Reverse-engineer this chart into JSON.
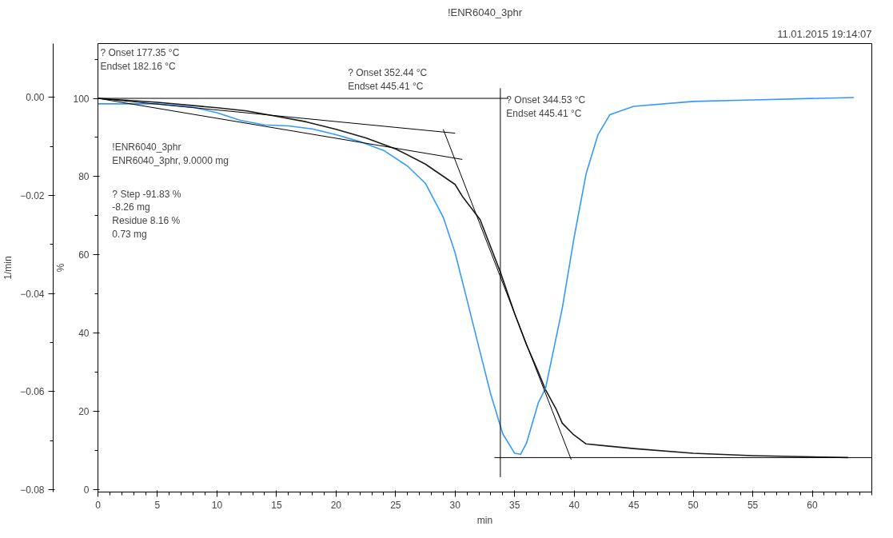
{
  "chart_data": {
    "type": "line",
    "title": "!ENR6040_3phr",
    "subtitle": "11.01.2015 19:14:07",
    "xlabel": "min",
    "ylabel": "%",
    "y2label": "1/min",
    "xlim": [
      0,
      65
    ],
    "xticks": [
      0,
      5,
      10,
      15,
      20,
      25,
      30,
      35,
      40,
      45,
      50,
      55,
      60
    ],
    "ylim": [
      -0.6,
      114
    ],
    "yticks": [
      0,
      20,
      40,
      60,
      80,
      100
    ],
    "y2lim": [
      -0.0805,
      0.011
    ],
    "y2ticks": [
      {
        "value": 0,
        "label": "0.00"
      },
      -0.02,
      -0.04,
      -0.06,
      -0.08
    ],
    "grid": false,
    "marker": "none",
    "line_style": "solid",
    "series": [
      {
        "color": "#1a1a1a",
        "x": [
          0,
          5,
          10,
          12.5,
          15,
          17.5,
          20,
          22.5,
          25,
          27.5,
          30,
          30.6,
          32.1,
          33.8,
          35,
          36,
          37,
          37.6,
          38.5,
          39,
          39.9,
          41,
          45,
          50,
          55,
          63
        ],
        "values": [
          100,
          99,
          97.6,
          96.8,
          95.4,
          94,
          92.1,
          89.9,
          87.1,
          83.2,
          78,
          75,
          69,
          55.6,
          45,
          37,
          30,
          25.5,
          20.5,
          17,
          14.2,
          11.7,
          10.5,
          9.3,
          8.7,
          8.2
        ]
      },
      {
        "color": "#3399ff",
        "axis": "y2",
        "x": [
          0,
          5,
          8,
          10,
          12,
          14,
          16,
          18,
          20,
          22,
          24,
          26,
          27.5,
          29,
          30,
          31,
          32,
          33,
          34,
          35,
          35.5,
          36,
          37,
          37.6,
          39,
          40,
          41,
          42,
          43,
          45,
          50,
          55,
          63.5
        ],
        "values": [
          -0.0013,
          -0.0013,
          -0.002,
          -0.0031,
          -0.0047,
          -0.0056,
          -0.0058,
          -0.0064,
          -0.0076,
          -0.009,
          -0.0108,
          -0.014,
          -0.0175,
          -0.0244,
          -0.0317,
          -0.0413,
          -0.051,
          -0.0606,
          -0.0686,
          -0.0726,
          -0.0728,
          -0.0705,
          -0.0622,
          -0.0593,
          -0.043,
          -0.0285,
          -0.0156,
          -0.0076,
          -0.0035,
          -0.0018,
          -0.0008,
          -0.0005,
          0
        ]
      },
      {
        "color": "#000000",
        "x": [
          0,
          34.5
        ],
        "values": [
          100,
          100
        ]
      },
      {
        "color": "#000000",
        "x": [
          0,
          30
        ],
        "values": [
          100,
          91.1
        ]
      },
      {
        "color": "#000000",
        "x": [
          0,
          30.6
        ],
        "values": [
          100,
          84.4
        ]
      },
      {
        "color": "#000000",
        "x": [
          29,
          39.75
        ],
        "values": [
          92.1,
          7.7
        ]
      },
      {
        "color": "#000000",
        "x": [
          33.8,
          33.8
        ],
        "values": [
          102.6,
          3.2
        ]
      },
      {
        "color": "#000000",
        "x": [
          33.3,
          65
        ],
        "values": [
          8.2,
          8.2
        ]
      }
    ],
    "annotations": [
      "? Onset  177.35 °C\nEndset   182.16 °C",
      "!ENR6040_3phr\nENR6040_3phr, 9.0000 mg",
      "? Step      -91.83 %\n                 -8.26 mg\nResidue   8.16 %\n                 0.73 mg",
      "? Onset  352.44 °C\nEndset   445.41 °C",
      "? Onset  344.53 °C\nEndset   445.41 °C"
    ]
  }
}
